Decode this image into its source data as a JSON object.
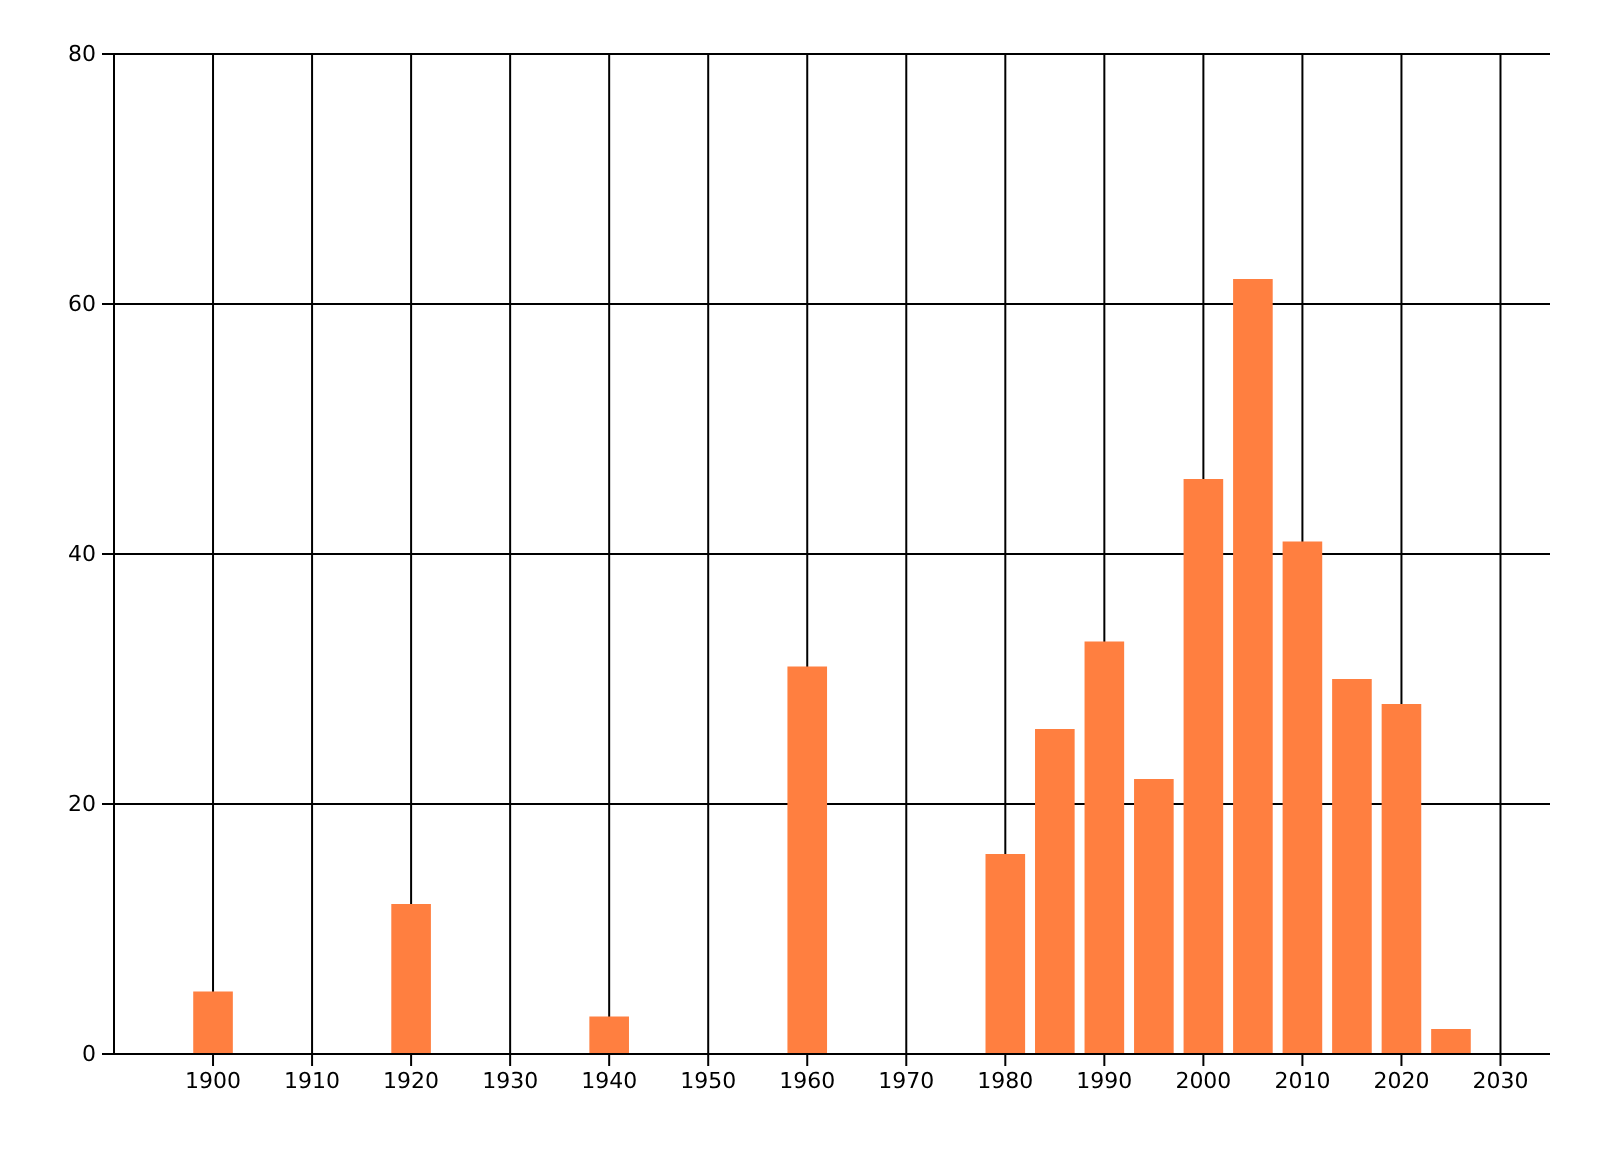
{
  "chart_data": {
    "type": "bar",
    "x": [
      1900,
      1920,
      1940,
      1960,
      1980,
      1985,
      1990,
      1995,
      2000,
      2005,
      2010,
      2015,
      2020,
      2025
    ],
    "values": [
      5,
      12,
      3,
      31,
      16,
      26,
      33,
      22,
      46,
      62,
      41,
      30,
      28,
      2
    ],
    "color": "#ff7f40",
    "xlim": [
      1890,
      2035
    ],
    "xticks": [
      1900,
      1910,
      1920,
      1930,
      1940,
      1950,
      1960,
      1970,
      1980,
      1990,
      2000,
      2010,
      2020,
      2030
    ],
    "ylim": [
      0,
      80
    ],
    "yticks": [
      0,
      20,
      40,
      60,
      80
    ],
    "grid": true
  }
}
